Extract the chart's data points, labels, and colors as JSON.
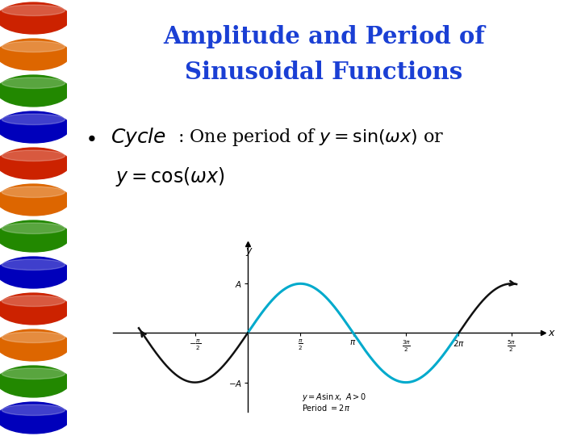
{
  "title_line1": "Amplitude and Period of",
  "title_line2": "Sinusoidal Functions",
  "title_color": "#1a3fd4",
  "bg_color": "#ffffff",
  "sine_color": "#00aacc",
  "dark_color": "#111111",
  "A": 1.0,
  "abacus_colors": [
    "#cc2200",
    "#dd6600",
    "#228800",
    "#0000bb",
    "#cc2200",
    "#dd6600",
    "#228800",
    "#0000bb",
    "#cc2200",
    "#dd6600",
    "#228800",
    "#0000bb"
  ],
  "abacus_bg": "#3a2010",
  "graph_xleft": -4.0,
  "graph_xright": 8.8,
  "graph_ylim_low": -1.6,
  "graph_ylim_high": 1.8
}
